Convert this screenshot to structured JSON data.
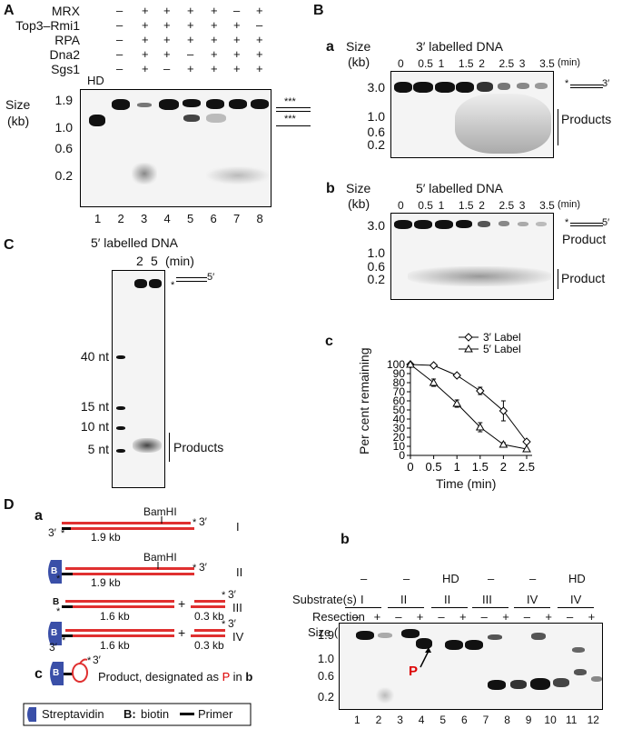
{
  "panelA": {
    "letter": "A",
    "rows": [
      {
        "label": "MRX",
        "marks": [
          "–",
          "+",
          "+",
          "+",
          "+",
          "–",
          "+"
        ]
      },
      {
        "label": "Top3–Rmi1",
        "marks": [
          "–",
          "+",
          "+",
          "+",
          "+",
          "+",
          "–"
        ]
      },
      {
        "label": "RPA",
        "marks": [
          "–",
          "+",
          "+",
          "+",
          "+",
          "+",
          "+"
        ]
      },
      {
        "label": "Dna2",
        "marks": [
          "–",
          "+",
          "+",
          "–",
          "+",
          "+",
          "+"
        ]
      },
      {
        "label": "Sgs1",
        "marks": [
          "–",
          "+",
          "–",
          "+",
          "+",
          "+",
          "+"
        ]
      }
    ],
    "hd": "HD",
    "size_label": "Size",
    "size_unit": "(kb)",
    "ticks": [
      "1.9",
      "1.0",
      "0.6",
      "0.2"
    ],
    "lanes": [
      "1",
      "2",
      "3",
      "4",
      "5",
      "6",
      "7",
      "8"
    ],
    "stars1": "***",
    "stars2": "***"
  },
  "panelB": {
    "letter": "B",
    "a": {
      "letter": "a",
      "title": "3′ labelled DNA",
      "size_label": "Size",
      "size_unit": "(kb)",
      "times": [
        "0",
        "0.5",
        "1",
        "1.5",
        "2",
        "2.5",
        "3",
        "3.5"
      ],
      "unit": "(min)",
      "ticks": [
        "3.0",
        "1.0",
        "0.6",
        "0.2"
      ],
      "products": "Products",
      "star": "*",
      "end": "3′"
    },
    "b": {
      "letter": "b",
      "title": "5′ labelled DNA",
      "size_label": "Size",
      "size_unit": "(kb)",
      "times": [
        "0",
        "0.5",
        "1",
        "1.5",
        "2",
        "2.5",
        "3",
        "3.5"
      ],
      "unit": "(min)",
      "ticks": [
        "3.0",
        "1.0",
        "0.6",
        "0.2"
      ],
      "product1": "Product",
      "product2": "Product",
      "star": "*",
      "end": "5′"
    },
    "c": {
      "letter": "c"
    }
  },
  "panelC": {
    "letter": "C",
    "title": "5′ labelled DNA",
    "times": [
      "2",
      "5"
    ],
    "unit": "(min)",
    "markers": [
      "40 nt",
      "15 nt",
      "10 nt",
      "5 nt"
    ],
    "products": "Products",
    "star": "*",
    "end": "5′"
  },
  "panelD": {
    "letter": "D",
    "a": {
      "letter": "a",
      "bamhi": "BamHI",
      "kb19": "1.9 kb",
      "kb16": "1.6 kb",
      "kb03": "0.3 kb",
      "end3": "3′",
      "star": "*",
      "plus": "+",
      "roman": [
        "I",
        "II",
        "III",
        "IV"
      ],
      "b": "B"
    },
    "c": {
      "letter": "c",
      "text_pre": "Product, designated as ",
      "p": "P",
      "text_mid": " in ",
      "b": "b"
    },
    "legend": {
      "streptavidin": "Streptavidin",
      "biotin_b": "B:",
      "biotin": "biotin",
      "primer": "Primer"
    },
    "b": {
      "letter": "b",
      "substrate_label": "Substrate(s)",
      "resection_label": "Resection",
      "size_label": "Size (kb)",
      "groups": [
        {
          "top": "–",
          "sub": "I"
        },
        {
          "top": "–",
          "sub": "II"
        },
        {
          "top": "HD",
          "sub": "II"
        },
        {
          "top": "–",
          "sub": "III"
        },
        {
          "top": "–",
          "sub": "IV"
        },
        {
          "top": "HD",
          "sub": "IV"
        }
      ],
      "res": [
        "–",
        "+",
        "–",
        "+",
        "–",
        "+",
        "–",
        "+",
        "–",
        "+",
        "–",
        "+"
      ],
      "ticks": [
        "1.9",
        "1.0",
        "0.6",
        "0.2"
      ],
      "lanes": [
        "1",
        "2",
        "3",
        "4",
        "5",
        "6",
        "7",
        "8",
        "9",
        "10",
        "11",
        "12"
      ],
      "p_label": "P"
    }
  },
  "chart_data": {
    "type": "line",
    "xlabel": "Time (min)",
    "ylabel": "Per cent remaining",
    "xlim": [
      0,
      2.5
    ],
    "ylim": [
      0,
      100
    ],
    "xticks": [
      "0",
      "0.5",
      "1",
      "1.5",
      "2",
      "2.5"
    ],
    "yticks": [
      "0",
      "10",
      "20",
      "30",
      "40",
      "50",
      "60",
      "70",
      "80",
      "90",
      "100"
    ],
    "series": [
      {
        "name": "3′ Label",
        "marker": "diamond",
        "x": [
          0,
          0.5,
          1,
          1.5,
          2,
          2.5
        ],
        "y": [
          100,
          99,
          88,
          71,
          49,
          15
        ],
        "err": [
          0,
          0,
          2,
          4,
          11,
          0
        ]
      },
      {
        "name": "5′ Label",
        "marker": "triangle",
        "x": [
          0,
          0.5,
          1,
          1.5,
          2,
          2.5
        ],
        "y": [
          100,
          80,
          57,
          31,
          12,
          7
        ],
        "err": [
          0,
          4,
          4,
          5,
          2,
          0
        ]
      }
    ],
    "legend": "top-right"
  }
}
